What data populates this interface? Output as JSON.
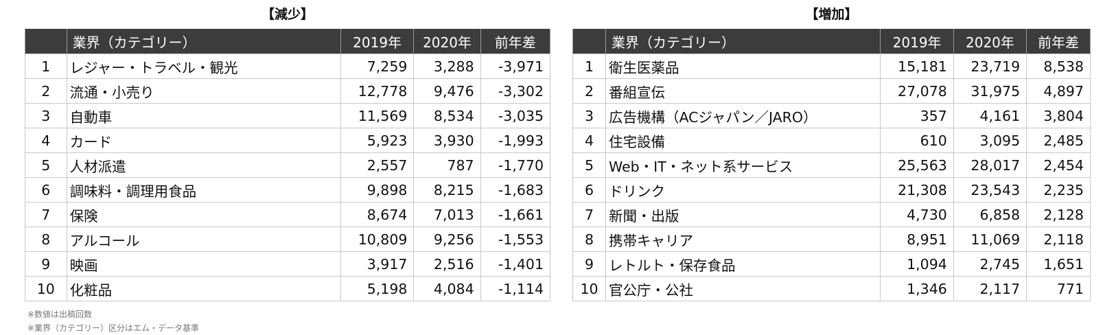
{
  "decrease": {
    "title": "【減少】",
    "headers": {
      "rank": "",
      "category": "業界（カテゴリー）",
      "y2019": "2019年",
      "y2020": "2020年",
      "diff": "前年差"
    },
    "rows": [
      {
        "rank": "1",
        "category": "レジャー・トラベル・観光",
        "y2019": "7,259",
        "y2020": "3,288",
        "diff": "-3,971"
      },
      {
        "rank": "2",
        "category": "流通・小売り",
        "y2019": "12,778",
        "y2020": "9,476",
        "diff": "-3,302"
      },
      {
        "rank": "3",
        "category": "自動車",
        "y2019": "11,569",
        "y2020": "8,534",
        "diff": "-3,035"
      },
      {
        "rank": "4",
        "category": "カード",
        "y2019": "5,923",
        "y2020": "3,930",
        "diff": "-1,993"
      },
      {
        "rank": "5",
        "category": "人材派遣",
        "y2019": "2,557",
        "y2020": "787",
        "diff": "-1,770"
      },
      {
        "rank": "6",
        "category": "調味料・調理用食品",
        "y2019": "9,898",
        "y2020": "8,215",
        "diff": "-1,683"
      },
      {
        "rank": "7",
        "category": "保険",
        "y2019": "8,674",
        "y2020": "7,013",
        "diff": "-1,661"
      },
      {
        "rank": "8",
        "category": "アルコール",
        "y2019": "10,809",
        "y2020": "9,256",
        "diff": "-1,553"
      },
      {
        "rank": "9",
        "category": "映画",
        "y2019": "3,917",
        "y2020": "2,516",
        "diff": "-1,401"
      },
      {
        "rank": "10",
        "category": "化粧品",
        "y2019": "5,198",
        "y2020": "4,084",
        "diff": "-1,114"
      }
    ]
  },
  "increase": {
    "title": "【増加】",
    "headers": {
      "rank": "",
      "category": "業界（カテゴリー）",
      "y2019": "2019年",
      "y2020": "2020年",
      "diff": "前年差"
    },
    "rows": [
      {
        "rank": "1",
        "category": "衛生医薬品",
        "y2019": "15,181",
        "y2020": "23,719",
        "diff": "8,538"
      },
      {
        "rank": "2",
        "category": "番組宣伝",
        "y2019": "27,078",
        "y2020": "31,975",
        "diff": "4,897"
      },
      {
        "rank": "3",
        "category": "広告機構（ACジャパン／JARO）",
        "y2019": "357",
        "y2020": "4,161",
        "diff": "3,804"
      },
      {
        "rank": "4",
        "category": "住宅設備",
        "y2019": "610",
        "y2020": "3,095",
        "diff": "2,485"
      },
      {
        "rank": "5",
        "category": "Web・IT・ネット系サービス",
        "y2019": "25,563",
        "y2020": "28,017",
        "diff": "2,454"
      },
      {
        "rank": "6",
        "category": "ドリンク",
        "y2019": "21,308",
        "y2020": "23,543",
        "diff": "2,235"
      },
      {
        "rank": "7",
        "category": "新聞・出版",
        "y2019": "4,730",
        "y2020": "6,858",
        "diff": "2,128"
      },
      {
        "rank": "8",
        "category": "携帯キャリア",
        "y2019": "8,951",
        "y2020": "11,069",
        "diff": "2,118"
      },
      {
        "rank": "9",
        "category": "レトルト・保存食品",
        "y2019": "1,094",
        "y2020": "2,745",
        "diff": "1,651"
      },
      {
        "rank": "10",
        "category": "官公庁・公社",
        "y2019": "1,346",
        "y2020": "2,117",
        "diff": "771"
      }
    ]
  },
  "notes": [
    "※数値は出稿回数",
    "※業界（カテゴリー）区分はエム・データ基準"
  ]
}
